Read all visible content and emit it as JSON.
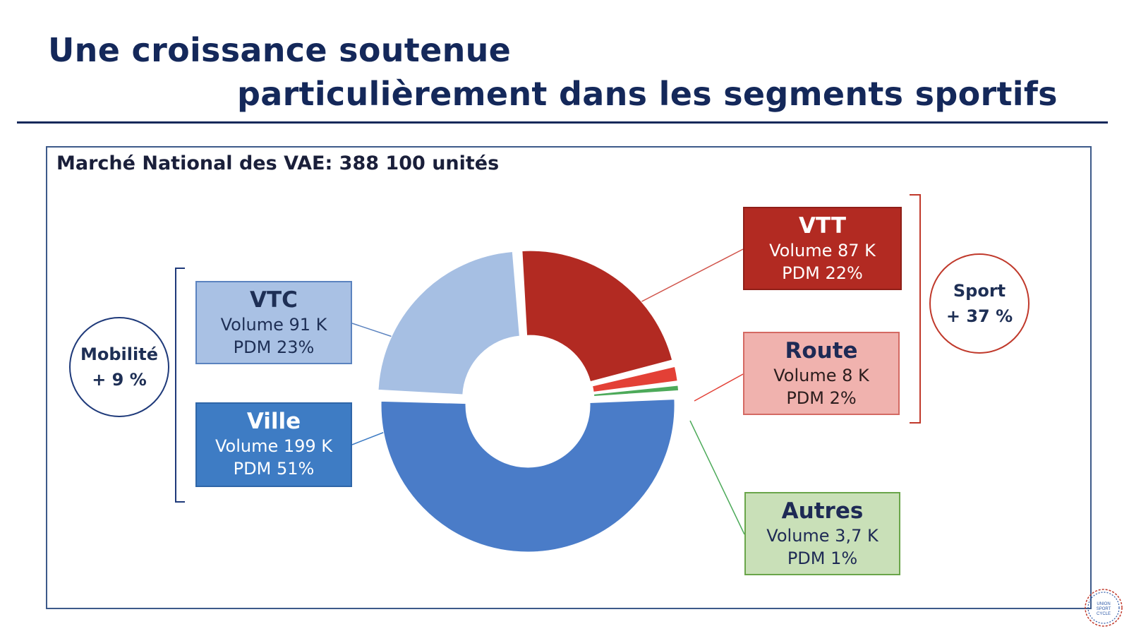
{
  "title": {
    "line1": "Une croissance soutenue",
    "line2": "particulièrement dans les segments sportifs"
  },
  "subtitle": "Marché National des VAE: 388 100 unités",
  "groups": {
    "mobilite": {
      "label": "Mobilité",
      "growth": "+ 9 %",
      "color": "#1f3a7a"
    },
    "sport": {
      "label": "Sport",
      "growth": "+ 37 %",
      "color": "#c0392b"
    }
  },
  "logo": {
    "text": "UNION SPORT & CYCLE"
  },
  "chart_data": {
    "type": "pie",
    "style": "donut",
    "title": "Marché National des VAE: 388 100 unités",
    "series": [
      {
        "name": "VTT",
        "volume": "Volume 87 K",
        "share": "PDM 22%",
        "value": 22,
        "color": "#b22a22"
      },
      {
        "name": "Route",
        "volume": "Volume 8 K",
        "share": "PDM 2%",
        "value": 2,
        "color": "#e34036"
      },
      {
        "name": "Autres",
        "volume": "Volume 3,7 K",
        "share": "PDM 1%",
        "value": 1,
        "color": "#4daa5a"
      },
      {
        "name": "Ville",
        "volume": "Volume 199 K",
        "share": "PDM 51%",
        "value": 51,
        "color": "#4a7cc8"
      },
      {
        "name": "VTC",
        "volume": "Volume 91 K",
        "share": "PDM 23%",
        "value": 23,
        "color": "#a6bfe3"
      }
    ]
  }
}
